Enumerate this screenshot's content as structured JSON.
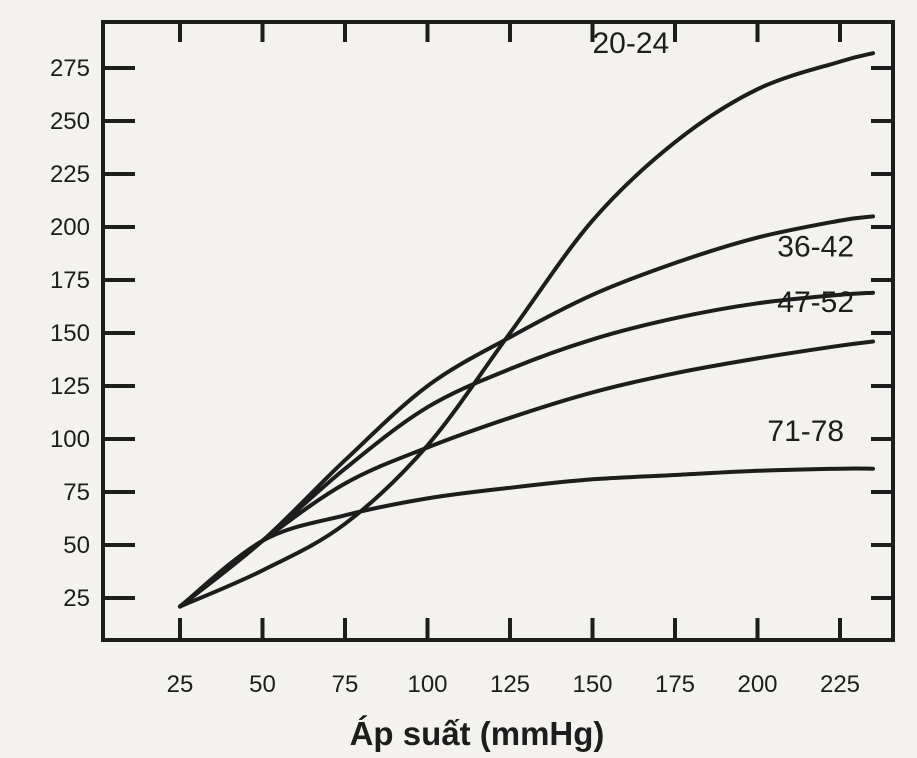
{
  "chart_data": {
    "type": "line",
    "xlabel": "Áp suất (mmHg)",
    "ylabel": "",
    "xlim": [
      10,
      240
    ],
    "ylim": [
      0,
      290
    ],
    "x_ticks": [
      25,
      50,
      75,
      100,
      125,
      150,
      175,
      200,
      225
    ],
    "y_ticks": [
      25,
      50,
      75,
      100,
      125,
      150,
      175,
      200,
      225,
      250,
      275
    ],
    "grid": false,
    "series": [
      {
        "name": "20-24",
        "x": [
          25,
          50,
          75,
          100,
          125,
          150,
          175,
          200,
          225,
          235
        ],
        "y": [
          21,
          38,
          60,
          97,
          150,
          203,
          240,
          265,
          278,
          282
        ]
      },
      {
        "name": "36-42",
        "x": [
          25,
          50,
          75,
          100,
          125,
          150,
          175,
          200,
          225,
          235
        ],
        "y": [
          21,
          52,
          90,
          125,
          148,
          168,
          183,
          195,
          203,
          205
        ]
      },
      {
        "name": "47-52",
        "x": [
          25,
          50,
          75,
          100,
          125,
          150,
          175,
          200,
          225,
          235
        ],
        "y": [
          21,
          52,
          86,
          115,
          133,
          147,
          157,
          164,
          168,
          169
        ]
      },
      {
        "name": "",
        "x": [
          25,
          50,
          75,
          100,
          125,
          150,
          175,
          200,
          225,
          235
        ],
        "y": [
          21,
          52,
          79,
          96,
          110,
          122,
          131,
          138,
          144,
          146
        ]
      },
      {
        "name": "71-78",
        "x": [
          25,
          50,
          75,
          100,
          125,
          150,
          175,
          200,
          225,
          235
        ],
        "y": [
          21,
          52,
          64,
          72,
          77,
          81,
          83,
          85,
          86,
          86
        ]
      }
    ],
    "series_labels": [
      {
        "text": "20-24",
        "x": 150,
        "y": 282
      },
      {
        "text": "36-42",
        "x": 206,
        "y": 186
      },
      {
        "text": "47-52",
        "x": 206,
        "y": 160
      },
      {
        "text": "71-78",
        "x": 203,
        "y": 99
      }
    ]
  }
}
